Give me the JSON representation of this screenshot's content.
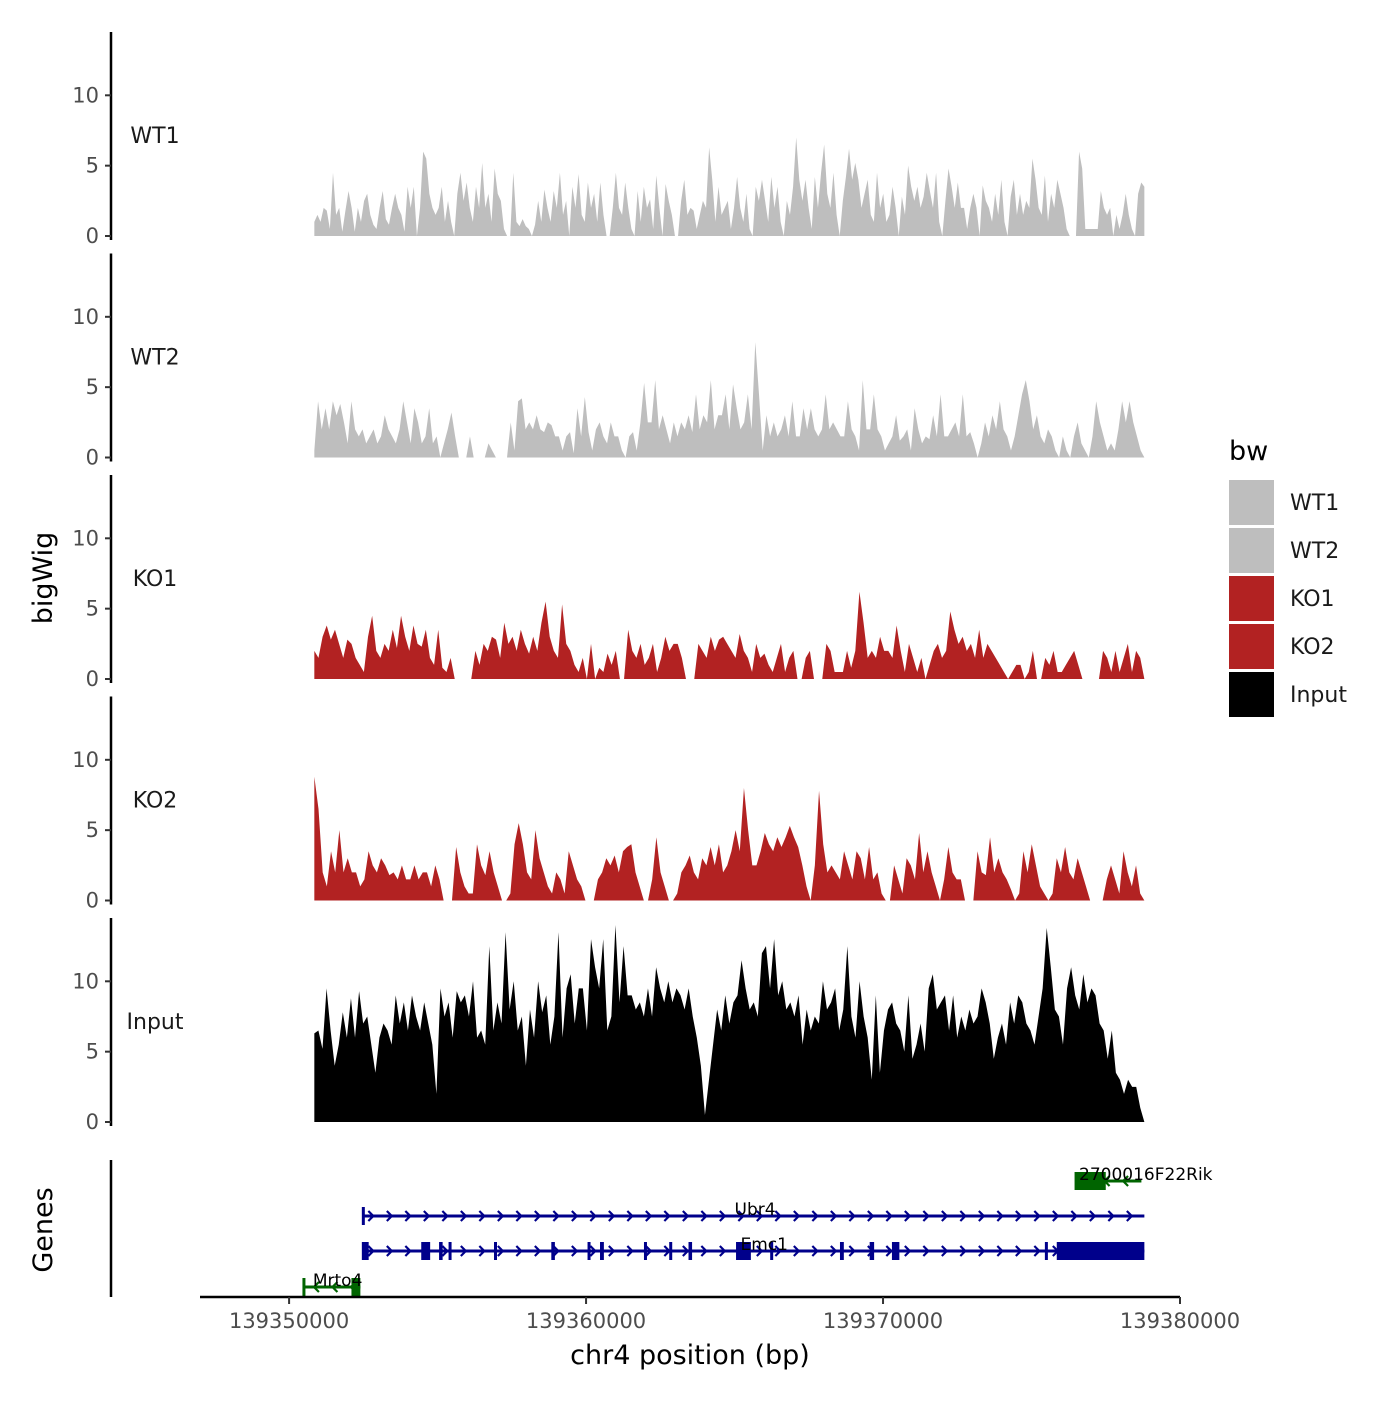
{
  "chart_data": {
    "type": "area",
    "xlabel": "chr4 position (bp)",
    "ylabel": "bigWig",
    "genes_label": "Genes",
    "xlim": [
      139347000,
      139380000
    ],
    "x_ticks": [
      139350000,
      139360000,
      139370000,
      139380000
    ],
    "x_tick_labels": [
      "139350000",
      "139360000",
      "139370000",
      "139380000"
    ],
    "ylim": [
      0,
      14.5
    ],
    "y_ticks": [
      0,
      5,
      10
    ],
    "y_tick_labels": [
      "0",
      "5",
      "10"
    ],
    "data_x_range": [
      139350850,
      139378800
    ],
    "legend": {
      "title": "bw",
      "placement": "right",
      "entries": [
        {
          "label": "WT1",
          "color": "#BEBEBE"
        },
        {
          "label": "WT2",
          "color": "#BEBEBE"
        },
        {
          "label": "KO1",
          "color": "#B22222"
        },
        {
          "label": "KO2",
          "color": "#B22222"
        },
        {
          "label": "Input",
          "color": "#000000"
        }
      ]
    },
    "series": [
      {
        "name": "WT1",
        "color": "#BEBEBE",
        "values": [
          1,
          1.5,
          1,
          2,
          1.8,
          0.5,
          4.5,
          1.5,
          2,
          0.3,
          1.8,
          3.2,
          2,
          0.3,
          2,
          1,
          2.5,
          3,
          1.5,
          0.8,
          0.5,
          2,
          3.2,
          1.2,
          0.8,
          2,
          3,
          2,
          1.5,
          0.3,
          3.5,
          2,
          3.5,
          0,
          2,
          6,
          5.5,
          3,
          2,
          1.5,
          2,
          3.5,
          1,
          2.5,
          1,
          0,
          3,
          4.5,
          2.5,
          3.8,
          2,
          1,
          3.5,
          2,
          5.2,
          2,
          3,
          1,
          4.8,
          3,
          2.5,
          0.5,
          0,
          0,
          4.5,
          1,
          0.7,
          1.2,
          0.7,
          0.5,
          0,
          0.8,
          2.5,
          1,
          3.3,
          2,
          1,
          3.2,
          2,
          4.5,
          1.5,
          2.5,
          0,
          3.5,
          2,
          4.4,
          1.5,
          1,
          3.8,
          2,
          3,
          1,
          3.8,
          1.5,
          0,
          0,
          2,
          4.5,
          2,
          1.5,
          3.8,
          2,
          0.5,
          0,
          3.2,
          1,
          3.5,
          2,
          2.6,
          0.5,
          4.3,
          2,
          0,
          3.7,
          2.5,
          1.5,
          0,
          0,
          2.5,
          4,
          1.5,
          2,
          1.8,
          0.5,
          1.5,
          2.5,
          2,
          6.3,
          4,
          1,
          3.5,
          1.5,
          2,
          2.5,
          0.5,
          2,
          4.2,
          2,
          1,
          3,
          0.5,
          0,
          3.5,
          2.5,
          4,
          2.5,
          1,
          4.2,
          2,
          3.5,
          1,
          0,
          2.5,
          1.5,
          3.5,
          7,
          4,
          2.5,
          4,
          2,
          0.5,
          4.2,
          2,
          4.5,
          6.5,
          3,
          2,
          4.5,
          1.5,
          0,
          2.5,
          4.2,
          6.2,
          4,
          5.2,
          4,
          2,
          3,
          4,
          1.5,
          1,
          4.5,
          2,
          3,
          1,
          1.5,
          3.5,
          2,
          0,
          2.8,
          1.5,
          5,
          3.5,
          2.5,
          3.5,
          2,
          2.8,
          4.5,
          3.2,
          2,
          4.5,
          1,
          0,
          2.5,
          4.8,
          3.5,
          2,
          3.8,
          2,
          2,
          0.5,
          2,
          3,
          2,
          0,
          3.6,
          2.5,
          2,
          1,
          3,
          1.5,
          4,
          1,
          0,
          2.8,
          4,
          1.5,
          3,
          1.5,
          2.5,
          2,
          5.5,
          4,
          2,
          1.5,
          4.3,
          1,
          3,
          2,
          4,
          3,
          2,
          0.5,
          0,
          0,
          0,
          6,
          4.8,
          0.5,
          0.5,
          0.5,
          0.5,
          0.5,
          3.2,
          2,
          1.5,
          2,
          0,
          1.5,
          0.5,
          1.5,
          3,
          1.5,
          0.5,
          0,
          3,
          3.8,
          3.5
        ]
      },
      {
        "name": "WT2",
        "color": "#BEBEBE",
        "values": [
          0.5,
          4,
          2,
          3.5,
          2,
          4,
          3,
          3.8,
          2.5,
          1,
          4,
          2,
          1.5,
          2,
          1,
          1.5,
          2,
          1,
          1.5,
          3,
          2,
          1.5,
          1,
          2,
          4,
          2.5,
          1,
          3.5,
          2.5,
          1,
          1.5,
          3.5,
          1,
          1.5,
          0,
          1,
          2,
          3.2,
          1.5,
          0,
          0,
          0,
          1.5,
          0,
          0,
          0,
          0,
          1,
          0.5,
          0,
          0,
          0,
          0,
          2.5,
          0.5,
          4,
          4.2,
          2,
          2.5,
          2,
          3,
          2,
          1.8,
          2.5,
          2.3,
          1.5,
          1.5,
          0.5,
          1.5,
          1.8,
          0.3,
          3.5,
          1.5,
          4.3,
          1.8,
          0.5,
          2,
          2.5,
          1.5,
          1,
          2.5,
          1.5,
          1.5,
          0.5,
          0,
          1.5,
          1.8,
          0.5,
          2.5,
          5.3,
          2.5,
          2.5,
          5.5,
          2,
          3,
          2,
          1,
          2.5,
          1.5,
          2.5,
          2,
          3,
          1.8,
          4.5,
          2,
          3,
          2.5,
          5.5,
          2,
          3,
          3,
          4.5,
          2,
          5.2,
          3.5,
          2,
          2.5,
          4.5,
          2,
          8.2,
          4.5,
          0.5,
          3,
          1.5,
          2.5,
          1.5,
          2,
          3,
          1.5,
          4,
          1.5,
          1.5,
          3.5,
          2,
          3.5,
          2,
          1.5,
          2,
          4.5,
          2,
          2.5,
          2,
          1.5,
          1.5,
          4,
          2,
          1.5,
          0.5,
          5.5,
          2,
          2,
          4.5,
          2,
          1.5,
          0.5,
          1,
          1.5,
          3,
          1.2,
          1.5,
          2,
          0.5,
          3.5,
          2,
          1,
          1.5,
          1.3,
          3,
          1.5,
          4.5,
          1.5,
          1.5,
          2,
          2.5,
          1.5,
          4.5,
          1.5,
          1.8,
          1,
          0,
          1,
          2.5,
          1.5,
          3,
          2,
          4,
          2,
          1.5,
          0.5,
          1.5,
          3,
          4.5,
          5.5,
          4,
          2,
          3,
          1.5,
          1,
          2,
          1.5,
          0.5,
          0,
          1.5,
          0.5,
          0,
          1.5,
          2.5,
          1,
          0.5,
          0,
          1.5,
          4,
          2.5,
          1.5,
          0.5,
          1,
          0.5,
          2,
          4,
          2.5,
          4,
          2.5,
          1.5,
          0.5,
          0
        ]
      },
      {
        "name": "KO1",
        "color": "#B22222",
        "values": [
          2,
          1.5,
          3,
          3.8,
          2.8,
          3.5,
          2.5,
          1.5,
          2.8,
          2.5,
          1.5,
          1,
          0.5,
          3,
          4.5,
          2,
          1.5,
          2.5,
          2,
          3.5,
          2.2,
          4.5,
          3,
          2,
          3.8,
          2.5,
          2.3,
          3.5,
          1.5,
          1,
          3.5,
          0.8,
          0.5,
          1.5,
          0,
          0,
          0,
          0,
          0,
          2,
          1,
          2.5,
          2,
          3,
          2.8,
          1.5,
          4,
          2.5,
          3,
          2,
          3.5,
          2.5,
          1.8,
          3,
          2,
          4,
          5.5,
          3,
          2,
          1.5,
          5.3,
          2.5,
          2,
          1,
          0.5,
          1.5,
          0,
          2.5,
          0,
          0.8,
          0.5,
          1.8,
          1,
          2,
          0,
          0,
          3.5,
          2,
          1.5,
          2.5,
          1,
          1.5,
          2.5,
          0.5,
          1.5,
          3,
          2,
          2.5,
          2.5,
          1.5,
          0,
          0,
          0,
          2.5,
          2,
          1.5,
          3,
          2,
          2.8,
          3,
          2.5,
          2,
          1.5,
          3.2,
          2,
          1.5,
          0.5,
          2.5,
          1.5,
          1.8,
          1,
          0.5,
          1.5,
          2.5,
          0.5,
          1.5,
          2,
          0,
          0,
          1.5,
          2,
          0,
          0,
          0,
          2.5,
          2,
          0.5,
          0.5,
          0.5,
          2,
          0.8,
          2,
          6.2,
          4,
          1.5,
          2,
          1.5,
          3,
          2,
          2,
          1.5,
          3.8,
          2,
          0.5,
          2.5,
          1.5,
          0.5,
          1.5,
          0,
          1,
          2,
          2.5,
          1.5,
          2,
          4.8,
          3.5,
          2.5,
          3,
          2,
          2.5,
          1.5,
          3.5,
          1.5,
          2.5,
          2,
          1.5,
          1,
          0.5,
          0,
          0.5,
          1,
          1,
          0,
          0.5,
          2,
          0,
          0,
          1.5,
          1,
          2,
          0.5,
          0.5,
          1,
          1.5,
          2,
          1,
          0,
          0,
          0,
          0,
          0,
          2,
          1.5,
          0.5,
          2,
          0.5,
          1.5,
          2.5,
          0.5,
          2,
          1.5,
          0
        ]
      },
      {
        "name": "KO2",
        "color": "#B22222",
        "values": [
          8.8,
          6.5,
          2,
          1,
          3.5,
          2,
          5,
          2,
          3,
          2,
          2,
          1,
          1.5,
          3.5,
          2.5,
          2,
          3,
          2.5,
          1.8,
          2,
          1.5,
          2.5,
          1.5,
          1.5,
          2.5,
          1.5,
          2,
          2,
          1,
          2.5,
          1.5,
          0,
          0,
          0,
          3.8,
          2,
          1,
          0.5,
          0.5,
          4,
          2.5,
          1.8,
          3.5,
          2,
          1,
          0,
          0,
          0.5,
          4,
          5.5,
          4,
          2,
          1.5,
          5,
          3,
          2,
          1,
          0.5,
          2,
          1.5,
          0.5,
          3.5,
          2.5,
          1.5,
          1,
          0,
          0,
          0,
          1.5,
          2,
          3,
          2.5,
          3.2,
          2,
          3.5,
          3.8,
          4,
          2,
          1,
          0,
          0,
          1.5,
          4.5,
          2,
          1,
          0,
          0,
          0.5,
          2,
          2.5,
          3.2,
          2,
          1.5,
          3,
          2.5,
          3.8,
          2.5,
          4,
          2,
          2.5,
          3.5,
          5,
          3.5,
          8,
          5,
          2.5,
          2.5,
          3.5,
          4.8,
          4,
          3.5,
          4.5,
          3.8,
          4.5,
          5.3,
          4.5,
          3.8,
          2.5,
          1,
          0,
          2.5,
          7.8,
          4,
          2,
          2.5,
          2,
          1.5,
          3.5,
          2.5,
          1.5,
          3.5,
          3,
          1.5,
          3.8,
          1.5,
          2,
          0.5,
          0,
          0,
          2.5,
          1.5,
          0.5,
          3,
          2.5,
          1.5,
          4.8,
          2,
          3.5,
          2,
          1,
          0,
          1.5,
          3.8,
          2,
          1.5,
          1.5,
          0,
          0,
          0,
          3.5,
          2,
          1.8,
          4.5,
          2,
          3,
          2,
          1.5,
          0.8,
          0,
          0.5,
          3.5,
          2,
          4,
          2.5,
          1,
          0.5,
          0,
          0.5,
          3,
          2,
          3.8,
          2,
          1.5,
          3,
          2,
          1,
          0,
          0,
          0,
          0,
          1.5,
          2.5,
          1.5,
          0.5,
          3.5,
          2,
          1,
          2.5,
          0.5,
          0
        ]
      },
      {
        "name": "Input",
        "color": "#000000",
        "values": [
          6.3,
          6.5,
          5.2,
          9.5,
          6.5,
          4,
          5.5,
          7.8,
          6,
          8.8,
          6,
          9.3,
          7,
          7.5,
          5.5,
          3.5,
          6,
          7,
          6.5,
          5.5,
          9,
          7,
          8.5,
          6.5,
          9,
          7.5,
          6.5,
          8.5,
          7,
          5.5,
          2,
          9.5,
          7.5,
          8.5,
          6,
          9.3,
          8.5,
          9,
          7.5,
          10,
          6,
          6.5,
          5.5,
          12.5,
          6.5,
          8.5,
          7,
          13.5,
          8,
          10,
          6.5,
          7.5,
          4,
          8,
          6,
          10,
          7.8,
          9,
          5.5,
          7.5,
          13.5,
          6,
          9.5,
          10.5,
          7,
          9.5,
          9.5,
          6.5,
          13,
          11,
          9.5,
          13,
          6.5,
          7.5,
          14,
          8.5,
          12.5,
          9,
          9,
          8,
          8.5,
          7.5,
          9.5,
          7.5,
          11,
          9.5,
          8.5,
          10,
          8.5,
          9.5,
          9,
          8,
          9.5,
          7.5,
          6,
          4,
          0.5,
          3,
          5.5,
          8,
          6.5,
          9,
          7,
          8.5,
          9,
          11.5,
          9.5,
          8,
          8.5,
          7.5,
          12,
          12.5,
          9.5,
          13,
          9,
          10,
          8,
          8.5,
          7.5,
          9,
          5.5,
          8,
          6.5,
          7.5,
          7,
          10,
          8,
          8.5,
          9.5,
          6.5,
          8,
          12.5,
          7.5,
          6,
          10,
          7.5,
          6,
          3,
          9,
          3.5,
          6.5,
          8,
          8.5,
          7,
          6.5,
          5,
          9,
          4.5,
          5.5,
          7,
          5,
          9.5,
          10.5,
          8,
          8.5,
          9,
          6.5,
          9,
          6,
          7.5,
          6.5,
          8,
          7,
          7.5,
          9.5,
          8.5,
          7,
          4.5,
          6,
          7,
          5.5,
          8.5,
          7,
          9,
          8.5,
          7,
          6.5,
          5.5,
          7.5,
          9.5,
          13.8,
          11,
          8,
          7.5,
          5.5,
          9.5,
          11,
          9,
          8,
          10.5,
          8.5,
          9.5,
          9,
          7,
          6.5,
          4.5,
          6.5,
          3.5,
          3,
          2,
          3,
          2.5,
          2.5,
          1,
          0
        ]
      }
    ],
    "genes": [
      {
        "name": "2700016F22Rik",
        "strand": "-",
        "row": 0,
        "color": "#006400",
        "start": 139376500,
        "end": 139378700,
        "exons": [
          [
            139376500,
            139377500
          ]
        ],
        "label_x": 139376600
      },
      {
        "name": "Ubr4",
        "strand": "+",
        "row": 1,
        "color": "#00008B",
        "start": 139352500,
        "end": 139378800,
        "exons": [],
        "label_x": 139365000
      },
      {
        "name": "Emc1",
        "strand": "+",
        "row": 2,
        "color": "#00008B",
        "start": 139352500,
        "end": 139378800,
        "exons": [
          [
            139352500,
            139352680
          ],
          [
            139354450,
            139354750
          ],
          [
            139355050,
            139355170
          ],
          [
            139355370,
            139355450
          ],
          [
            139356900,
            139357000
          ],
          [
            139358830,
            139358950
          ],
          [
            139360050,
            139360130
          ],
          [
            139360470,
            139360600
          ],
          [
            139361950,
            139362050
          ],
          [
            139362800,
            139362900
          ],
          [
            139363450,
            139363570
          ],
          [
            139365050,
            139365550
          ],
          [
            139366200,
            139366300
          ],
          [
            139368550,
            139368680
          ],
          [
            139369550,
            139369700
          ],
          [
            139370300,
            139370550
          ],
          [
            139375450,
            139375550
          ],
          [
            139375850,
            139378800
          ]
        ],
        "label_x": 139365200
      },
      {
        "name": "Mrto4",
        "strand": "-",
        "row": 3,
        "color": "#006400",
        "start": 139350500,
        "end": 139352400,
        "exons": [
          [
            139352100,
            139352400
          ]
        ],
        "label_x": 139350800
      }
    ]
  }
}
